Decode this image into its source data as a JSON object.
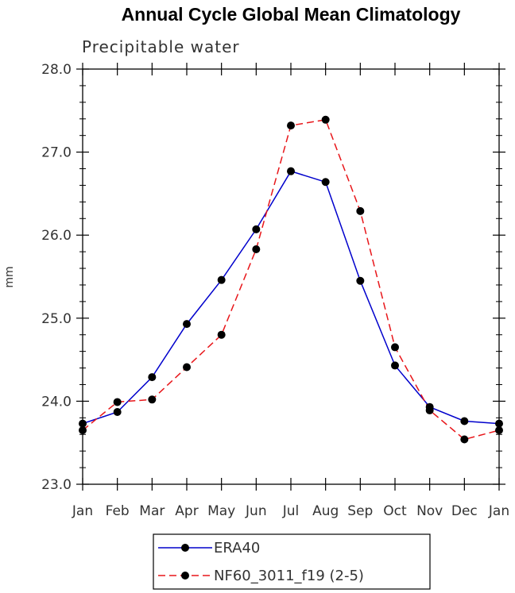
{
  "chart_data": {
    "type": "line",
    "title": "Annual Cycle Global Mean Climatology",
    "subtitle": "Precipitable water",
    "xlabel": "",
    "ylabel": "mm",
    "categories": [
      "Jan",
      "Feb",
      "Mar",
      "Apr",
      "May",
      "Jun",
      "Jul",
      "Aug",
      "Sep",
      "Oct",
      "Nov",
      "Dec",
      "Jan"
    ],
    "ylim": [
      23.0,
      28.0
    ],
    "yticks": [
      23.0,
      24.0,
      25.0,
      26.0,
      27.0,
      28.0
    ],
    "ytick_labels": [
      "23.0",
      "24.0",
      "25.0",
      "26.0",
      "27.0",
      "28.0"
    ],
    "series": [
      {
        "name": "ERA40",
        "color": "#0000cc",
        "dash": "solid",
        "values": [
          23.73,
          23.87,
          24.29,
          24.93,
          25.46,
          26.07,
          26.77,
          26.64,
          25.45,
          24.43,
          23.93,
          23.76,
          23.73
        ]
      },
      {
        "name": "NF60_3011_f19 (2-5)",
        "color": "#e8161a",
        "dash": "dashed",
        "values": [
          23.65,
          23.99,
          24.02,
          24.41,
          24.8,
          25.83,
          27.32,
          27.39,
          26.29,
          24.65,
          23.89,
          23.54,
          23.65
        ]
      }
    ],
    "legend_position": "bottom"
  }
}
